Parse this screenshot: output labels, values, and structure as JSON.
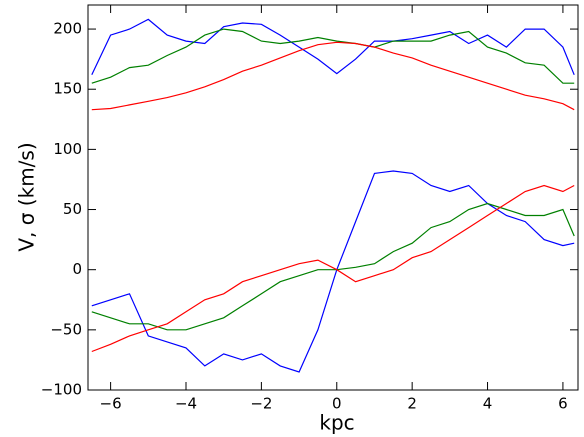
{
  "chart_data": {
    "type": "line",
    "xlabel": "kpc",
    "ylabel": "V, σ (km/s)",
    "x": [
      -6.5,
      -6,
      -5.5,
      -5,
      -4.5,
      -4,
      -3.5,
      -3,
      -2.5,
      -2,
      -1.5,
      -1,
      -0.5,
      0,
      0.5,
      1,
      1.5,
      2,
      2.5,
      3,
      3.5,
      4,
      4.5,
      5,
      5.5,
      6,
      6.3
    ],
    "series": [
      {
        "color": "#0000ff",
        "values": [
          162,
          195,
          200,
          208,
          195,
          190,
          188,
          202,
          205,
          204,
          195,
          185,
          175,
          163,
          175,
          190,
          190,
          192,
          195,
          198,
          188,
          195,
          185,
          200,
          200,
          185,
          162
        ]
      },
      {
        "color": "#008000",
        "values": [
          155,
          160,
          168,
          170,
          178,
          185,
          195,
          200,
          198,
          190,
          188,
          190,
          193,
          190,
          188,
          185,
          190,
          190,
          190,
          195,
          198,
          185,
          180,
          172,
          170,
          155,
          155
        ]
      },
      {
        "color": "#ff0000",
        "values": [
          133,
          134,
          137,
          140,
          143,
          147,
          152,
          158,
          165,
          170,
          176,
          182,
          187,
          189,
          188,
          185,
          180,
          176,
          170,
          165,
          160,
          155,
          150,
          145,
          142,
          138,
          133
        ]
      },
      {
        "color": "#0000ff",
        "values": [
          -30,
          -25,
          -20,
          -55,
          -60,
          -65,
          -80,
          -70,
          -75,
          -70,
          -80,
          -85,
          -50,
          0,
          40,
          80,
          82,
          80,
          70,
          65,
          70,
          55,
          45,
          40,
          25,
          20,
          22
        ]
      },
      {
        "color": "#008000",
        "values": [
          -35,
          -40,
          -45,
          -45,
          -50,
          -50,
          -45,
          -40,
          -30,
          -20,
          -10,
          -5,
          0,
          0,
          2,
          5,
          15,
          22,
          35,
          40,
          50,
          55,
          50,
          45,
          45,
          50,
          28
        ]
      },
      {
        "color": "#ff0000",
        "values": [
          -68,
          -62,
          -55,
          -50,
          -45,
          -35,
          -25,
          -20,
          -10,
          -5,
          0,
          5,
          8,
          0,
          -10,
          -5,
          0,
          10,
          15,
          25,
          35,
          45,
          55,
          65,
          70,
          65,
          70
        ]
      }
    ],
    "xlim": [
      -6.6,
      6.4
    ],
    "xticks": [
      {
        "value": -6,
        "label": "−6"
      },
      {
        "value": -4,
        "label": "−4"
      },
      {
        "value": -2,
        "label": "−2"
      },
      0,
      2,
      4,
      6
    ],
    "ylim": [
      -100,
      220
    ],
    "yticks": [
      {
        "value": -100,
        "label": "−100"
      },
      {
        "value": -50,
        "label": "−50"
      },
      0,
      50,
      100,
      150,
      200
    ],
    "grid": false
  }
}
